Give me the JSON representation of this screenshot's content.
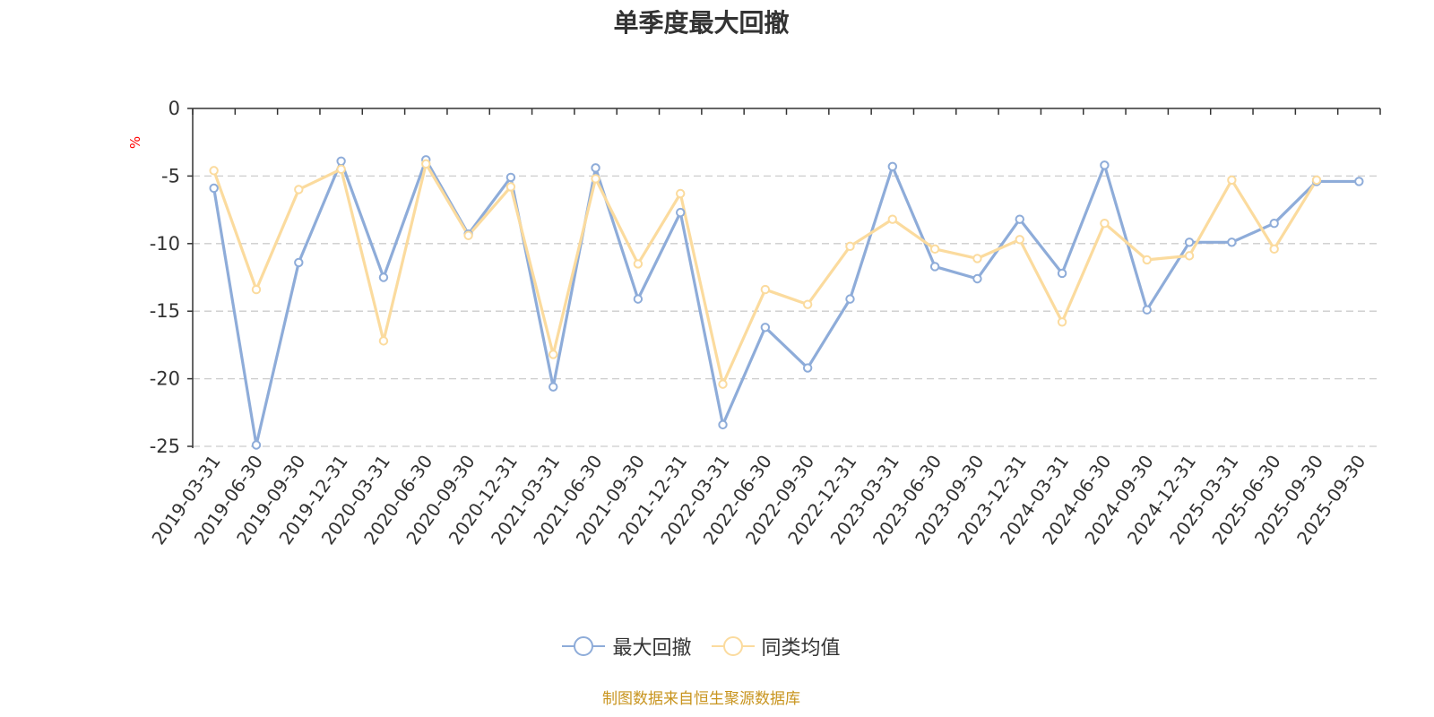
{
  "title": "单季度最大回撤",
  "unit_label": "%",
  "source": "制图数据来自恒生聚源数据库",
  "colors": {
    "series1": "#8eacd9",
    "series2": "#fbdb9e",
    "axis": "#333333",
    "grid": "#cccccc",
    "unit": "#ff0000",
    "source": "#c8941e"
  },
  "legend": [
    {
      "label": "最大回撤",
      "color": "#8eacd9"
    },
    {
      "label": "同类均值",
      "color": "#fbdb9e"
    }
  ],
  "chart_data": {
    "type": "line",
    "title": "单季度最大回撤",
    "ylabel": "%",
    "ylim": [
      -25,
      0
    ],
    "yticks": [
      0,
      -5,
      -10,
      -15,
      -20,
      -25
    ],
    "grid": true,
    "legend_position": "bottom-center",
    "categories": [
      "2019-03-31",
      "2019-06-30",
      "2019-09-30",
      "2019-12-31",
      "2020-03-31",
      "2020-06-30",
      "2020-09-30",
      "2020-12-31",
      "2021-03-31",
      "2021-06-30",
      "2021-09-30",
      "2021-12-31",
      "2022-03-31",
      "2022-06-30",
      "2022-09-30",
      "2022-12-31",
      "2023-03-31",
      "2023-06-30",
      "2023-09-30",
      "2023-12-31",
      "2024-03-31",
      "2024-06-30",
      "2024-09-30",
      "2024-12-31",
      "2025-03-31",
      "2025-06-30",
      "2025-09-30",
      "2025-09-30"
    ],
    "series": [
      {
        "name": "最大回撤",
        "color": "#8eacd9",
        "values": [
          -5.9,
          -24.9,
          -11.4,
          -3.9,
          -12.5,
          -3.8,
          -9.3,
          -5.1,
          -20.6,
          -4.4,
          -14.1,
          -7.7,
          -23.4,
          -16.2,
          -19.2,
          -14.1,
          -4.3,
          -11.7,
          -12.6,
          -8.2,
          -12.2,
          -4.2,
          -14.9,
          -9.9,
          -9.9,
          -8.5,
          -5.4,
          -5.4
        ]
      },
      {
        "name": "同类均值",
        "color": "#fbdb9e",
        "values": [
          -4.6,
          -13.4,
          -6.0,
          -4.5,
          -17.2,
          -4.1,
          -9.4,
          -5.8,
          -18.2,
          -5.2,
          -11.5,
          -6.3,
          -20.4,
          -13.4,
          -14.5,
          -10.2,
          -8.2,
          -10.4,
          -11.1,
          -9.7,
          -15.8,
          -8.5,
          -11.2,
          -10.9,
          -5.3,
          -10.4,
          -5.3,
          null
        ]
      }
    ]
  }
}
